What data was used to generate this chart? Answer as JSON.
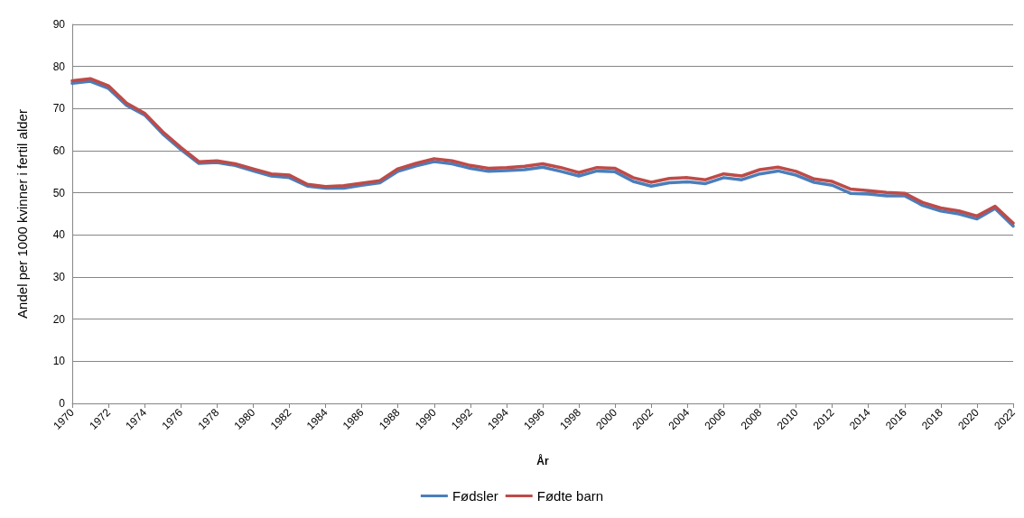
{
  "chart_data": {
    "type": "line",
    "xlabel": "År",
    "ylabel": "Andel per 1000 kvinner i fertil alder",
    "categories": [
      "1970",
      null,
      "1972",
      null,
      "1974",
      null,
      "1976",
      null,
      "1978",
      null,
      "1980",
      null,
      "1982",
      null,
      "1984",
      null,
      "1986",
      null,
      "1988",
      null,
      "1990",
      null,
      "1992",
      null,
      "1994",
      null,
      "1996",
      null,
      "1998",
      null,
      "2000",
      null,
      "2002",
      null,
      "2004",
      null,
      "2006",
      null,
      "2008",
      null,
      "2010",
      null,
      "2012",
      null,
      "2014",
      null,
      "2016",
      null,
      "2018",
      null,
      "2020",
      null,
      "2022"
    ],
    "series": [
      {
        "name": "Fødsler",
        "color": "#4a7ebb",
        "values": [
          76.0,
          76.5,
          74.8,
          70.8,
          68.5,
          64.0,
          60.3,
          57.0,
          57.2,
          56.5,
          55.2,
          54.0,
          53.6,
          51.6,
          51.1,
          51.1,
          51.8,
          52.4,
          55.1,
          56.4,
          57.4,
          56.9,
          55.8,
          55.1,
          55.3,
          55.5,
          56.1,
          55.1,
          54.0,
          55.2,
          55.0,
          52.7,
          51.6,
          52.4,
          52.6,
          52.2,
          53.6,
          53.1,
          54.5,
          55.2,
          54.2,
          52.5,
          51.8,
          49.9,
          49.7,
          49.3,
          49.3,
          47.0,
          45.7,
          45.0,
          43.8,
          46.3,
          42.1
        ]
      },
      {
        "name": "Fødte barn",
        "color": "#be4b48",
        "values": [
          76.6,
          77.1,
          75.4,
          71.3,
          68.9,
          64.5,
          60.8,
          57.4,
          57.6,
          56.9,
          55.7,
          54.5,
          54.2,
          52.0,
          51.5,
          51.7,
          52.3,
          52.9,
          55.7,
          57.0,
          58.1,
          57.6,
          56.5,
          55.8,
          56.0,
          56.3,
          56.9,
          56.0,
          54.8,
          56.0,
          55.8,
          53.6,
          52.5,
          53.4,
          53.6,
          53.1,
          54.5,
          54.0,
          55.5,
          56.1,
          55.1,
          53.3,
          52.7,
          50.9,
          50.5,
          50.1,
          49.9,
          47.7,
          46.4,
          45.7,
          44.5,
          46.8,
          42.8
        ]
      }
    ],
    "ylim": [
      0,
      90
    ],
    "yticks": [
      0,
      10,
      20,
      30,
      40,
      50,
      60,
      70,
      80,
      90
    ],
    "grid": "y",
    "legend": "bottom",
    "marker": "none",
    "line_style": "solid"
  }
}
